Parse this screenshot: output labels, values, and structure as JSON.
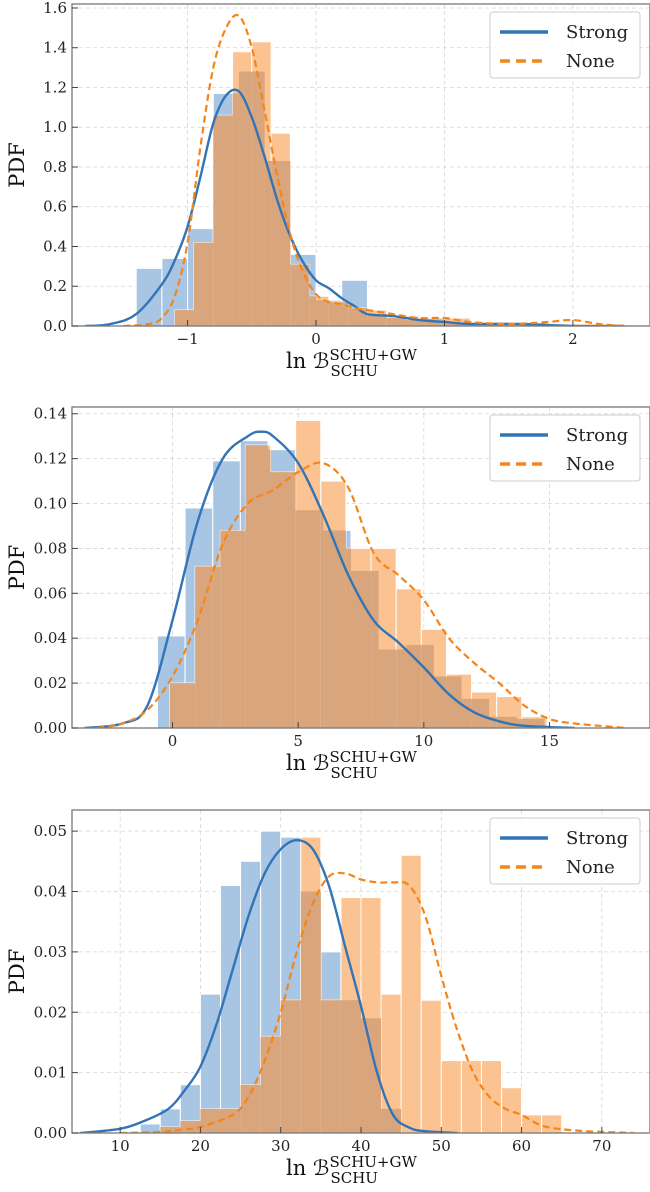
{
  "colors": {
    "strong": "#3274b5",
    "none": "#f58518",
    "strong_fill": "#a8c5e4",
    "none_fill": "#fcc392",
    "overlap_fill": "#d8a57c"
  },
  "chart_data": [
    {
      "type": "histogram+kde",
      "xlim": [
        -1.9,
        2.6
      ],
      "ylim": [
        0,
        1.62
      ],
      "xticks": [
        -1,
        0,
        1,
        2
      ],
      "xtick_labels": [
        "−1",
        "0",
        "1",
        "2"
      ],
      "yticks": [
        0,
        0.2,
        0.4,
        0.6,
        0.8,
        1.0,
        1.2,
        1.4,
        1.6
      ],
      "ytick_labels": [
        "0.0",
        "0.2",
        "0.4",
        "0.6",
        "0.8",
        "1.0",
        "1.2",
        "1.4",
        "1.6"
      ],
      "ylabel": "PDF",
      "xlabel": {
        "main": "ln ℬ",
        "sup": "SCHU+GW",
        "sub": "SCHU"
      },
      "grid": true,
      "legend": {
        "position": "top-right",
        "entries": [
          {
            "label": "Strong",
            "style": "solid"
          },
          {
            "label": "None",
            "style": "dashed"
          }
        ]
      },
      "bins": {
        "strong": {
          "edges": [
            -1.4,
            -1.2,
            -1.0,
            -0.8,
            -0.6,
            -0.4,
            -0.2,
            0.0,
            0.2,
            0.4,
            0.6,
            0.8,
            1.0,
            1.2
          ],
          "values": [
            0.29,
            0.34,
            0.49,
            1.17,
            1.28,
            0.83,
            0.36,
            0.13,
            0.23,
            0.06,
            0.05,
            0.04,
            0.01
          ]
        },
        "none": {
          "edges": [
            -1.1,
            -0.95,
            -0.8,
            -0.65,
            -0.5,
            -0.35,
            -0.2,
            -0.05,
            0.1,
            0.25,
            0.4,
            0.55,
            0.7,
            0.85,
            1.0,
            1.2,
            1.5,
            2.0,
            2.4
          ],
          "values": [
            0.08,
            0.42,
            1.06,
            1.38,
            1.43,
            0.97,
            0.31,
            0.15,
            0.12,
            0.09,
            0.08,
            0.04,
            0.03,
            0.02,
            0.04,
            0.02,
            0.01,
            0.01
          ]
        }
      },
      "kde": {
        "strong": {
          "x": [
            -1.8,
            -1.6,
            -1.4,
            -1.2,
            -1.1,
            -1.0,
            -0.9,
            -0.8,
            -0.7,
            -0.6,
            -0.5,
            -0.4,
            -0.3,
            -0.2,
            -0.1,
            0.0,
            0.1,
            0.2,
            0.3,
            0.4,
            0.6,
            0.8,
            1.0,
            1.2,
            1.6,
            2.0,
            2.4
          ],
          "y": [
            0.0,
            0.01,
            0.06,
            0.21,
            0.33,
            0.5,
            0.75,
            1.02,
            1.16,
            1.18,
            1.05,
            0.85,
            0.63,
            0.45,
            0.32,
            0.23,
            0.19,
            0.14,
            0.1,
            0.06,
            0.05,
            0.03,
            0.02,
            0.01,
            0.01,
            0.0,
            0.0
          ]
        },
        "none": {
          "x": [
            -1.5,
            -1.3,
            -1.2,
            -1.1,
            -1.0,
            -0.9,
            -0.8,
            -0.7,
            -0.6,
            -0.5,
            -0.4,
            -0.3,
            -0.2,
            -0.1,
            0.0,
            0.1,
            0.2,
            0.3,
            0.4,
            0.6,
            0.8,
            1.0,
            1.2,
            1.5,
            1.8,
            2.0,
            2.2,
            2.4
          ],
          "y": [
            0.0,
            0.01,
            0.04,
            0.15,
            0.42,
            0.9,
            1.3,
            1.5,
            1.56,
            1.4,
            1.08,
            0.75,
            0.46,
            0.27,
            0.16,
            0.12,
            0.11,
            0.09,
            0.08,
            0.06,
            0.04,
            0.04,
            0.02,
            0.01,
            0.02,
            0.03,
            0.01,
            0.0
          ]
        }
      }
    },
    {
      "type": "histogram+kde",
      "xlim": [
        -4,
        19
      ],
      "ylim": [
        0,
        0.143
      ],
      "xticks": [
        0,
        5,
        10,
        15
      ],
      "xtick_labels": [
        "0",
        "5",
        "10",
        "15"
      ],
      "yticks": [
        0,
        0.02,
        0.04,
        0.06,
        0.08,
        0.1,
        0.12,
        0.14
      ],
      "ytick_labels": [
        "0.00",
        "0.02",
        "0.04",
        "0.06",
        "0.08",
        "0.10",
        "0.12",
        "0.14"
      ],
      "ylabel": "PDF",
      "xlabel": {
        "main": "ln ℬ",
        "sup": "SCHU+GW",
        "sub": "SCHU"
      },
      "grid": true,
      "legend": {
        "position": "top-right",
        "entries": [
          {
            "label": "Strong",
            "style": "solid"
          },
          {
            "label": "None",
            "style": "dashed"
          }
        ]
      },
      "bins": {
        "strong": {
          "edges": [
            -0.6,
            0.5,
            1.6,
            2.7,
            3.8,
            4.9,
            6.0,
            7.1,
            8.2,
            9.3,
            10.4,
            11.5,
            12.6,
            13.7,
            14.8
          ],
          "values": [
            0.041,
            0.098,
            0.119,
            0.128,
            0.124,
            0.097,
            0.088,
            0.07,
            0.035,
            0.037,
            0.023,
            0.013,
            0.005,
            0.004
          ]
        },
        "none": {
          "edges": [
            -0.1,
            0.9,
            1.9,
            2.9,
            3.9,
            4.9,
            5.9,
            6.9,
            7.9,
            8.9,
            9.9,
            10.9,
            11.9,
            12.9,
            13.9,
            14.9
          ],
          "values": [
            0.02,
            0.072,
            0.088,
            0.126,
            0.114,
            0.137,
            0.11,
            0.08,
            0.08,
            0.062,
            0.044,
            0.024,
            0.016,
            0.014,
            0.005
          ]
        }
      },
      "kde": {
        "strong": {
          "x": [
            -3.5,
            -2.0,
            -1.0,
            0.0,
            1.0,
            2.0,
            3.0,
            3.5,
            4.0,
            5.0,
            6.0,
            7.0,
            8.0,
            9.0,
            10.0,
            11.0,
            12.0,
            13.0,
            14.0,
            16.0
          ],
          "y": [
            0.0,
            0.002,
            0.01,
            0.048,
            0.092,
            0.12,
            0.13,
            0.132,
            0.13,
            0.118,
            0.095,
            0.068,
            0.048,
            0.038,
            0.027,
            0.015,
            0.007,
            0.003,
            0.001,
            0.0
          ]
        },
        "none": {
          "x": [
            -3.0,
            -2.0,
            -1.0,
            0.0,
            1.0,
            2.0,
            3.0,
            4.0,
            5.0,
            6.0,
            7.0,
            8.0,
            9.0,
            10.0,
            11.0,
            12.0,
            13.0,
            14.0,
            15.0,
            16.0,
            17.0,
            18.0
          ],
          "y": [
            0.0,
            0.002,
            0.008,
            0.023,
            0.048,
            0.082,
            0.1,
            0.106,
            0.114,
            0.118,
            0.107,
            0.078,
            0.068,
            0.057,
            0.04,
            0.029,
            0.02,
            0.01,
            0.004,
            0.002,
            0.001,
            0.0
          ]
        }
      }
    },
    {
      "type": "histogram+kde",
      "xlim": [
        4,
        76
      ],
      "ylim": [
        0,
        0.0535
      ],
      "xticks": [
        10,
        20,
        30,
        40,
        50,
        60,
        70
      ],
      "xtick_labels": [
        "10",
        "20",
        "30",
        "40",
        "50",
        "60",
        "70"
      ],
      "yticks": [
        0,
        0.01,
        0.02,
        0.03,
        0.04,
        0.05
      ],
      "ytick_labels": [
        "0.00",
        "0.01",
        "0.02",
        "0.03",
        "0.04",
        "0.05"
      ],
      "ylabel": "PDF",
      "xlabel": {
        "main": "ln ℬ",
        "sup": "SCHU+GW",
        "sub": "SCHU"
      },
      "grid": true,
      "legend": {
        "position": "top-right",
        "entries": [
          {
            "label": "Strong",
            "style": "solid"
          },
          {
            "label": "None",
            "style": "dashed"
          }
        ]
      },
      "bins": {
        "strong": {
          "edges": [
            12.5,
            15.0,
            17.5,
            20.0,
            22.5,
            25.0,
            27.5,
            30.0,
            32.5,
            35.0,
            37.5,
            40.0,
            42.5,
            45.0
          ],
          "values": [
            0.0015,
            0.004,
            0.008,
            0.023,
            0.041,
            0.045,
            0.05,
            0.049,
            0.04,
            0.03,
            0.022,
            0.019,
            0.004
          ]
        },
        "none": {
          "edges": [
            15.0,
            17.5,
            20.0,
            22.5,
            25.0,
            27.5,
            30.0,
            32.5,
            35.0,
            37.5,
            40.0,
            42.5,
            45.0,
            47.5,
            50.0,
            52.5,
            55.0,
            57.5,
            60.0,
            62.5,
            65.0
          ],
          "values": [
            0.001,
            0.002,
            0.004,
            0.004,
            0.008,
            0.016,
            0.022,
            0.049,
            0.022,
            0.039,
            0.039,
            0.023,
            0.046,
            0.022,
            0.012,
            0.012,
            0.012,
            0.0075,
            0.003,
            0.003
          ]
        }
      },
      "kde": {
        "strong": {
          "x": [
            5,
            10,
            13,
            16,
            18,
            20,
            22,
            24,
            26,
            28,
            30,
            32,
            34,
            36,
            38,
            40,
            42,
            44,
            46,
            48,
            52
          ],
          "y": [
            0.0,
            0.0007,
            0.002,
            0.004,
            0.007,
            0.011,
            0.018,
            0.027,
            0.036,
            0.043,
            0.047,
            0.0485,
            0.047,
            0.041,
            0.031,
            0.021,
            0.01,
            0.003,
            0.0009,
            0.0003,
            0.0
          ]
        },
        "none": {
          "x": [
            10,
            15,
            18,
            20,
            24,
            26,
            28,
            30,
            32,
            34,
            36,
            38,
            40,
            42,
            44,
            46,
            48,
            50,
            52,
            54,
            56,
            58,
            60,
            62,
            64,
            68,
            74
          ],
          "y": [
            0.0,
            0.0002,
            0.0006,
            0.001,
            0.003,
            0.006,
            0.012,
            0.02,
            0.03,
            0.038,
            0.0425,
            0.043,
            0.042,
            0.0415,
            0.0415,
            0.041,
            0.036,
            0.026,
            0.017,
            0.01,
            0.006,
            0.004,
            0.003,
            0.0015,
            0.0008,
            0.0003,
            0.0
          ]
        }
      }
    }
  ]
}
